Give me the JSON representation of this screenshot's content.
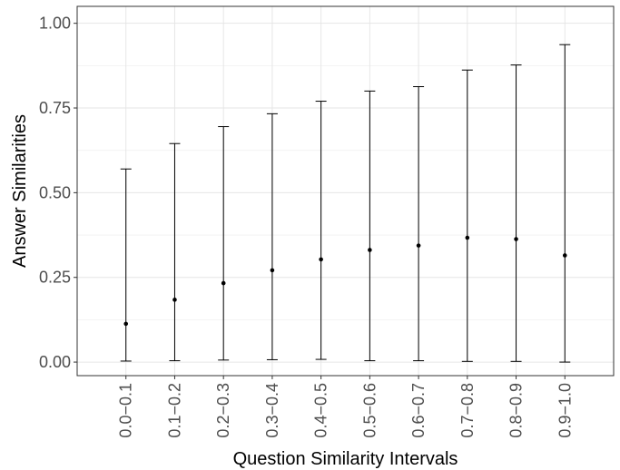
{
  "chart_data": {
    "type": "errorbar",
    "xlabel": "Question Similarity Intervals",
    "ylabel": "Answer Similarities",
    "ylim": [
      -0.04,
      1.05
    ],
    "yticks": [
      "0.00",
      "0.25",
      "0.50",
      "0.75",
      "1.00"
    ],
    "ytick_values": [
      0,
      0.25,
      0.5,
      0.75,
      1.0
    ],
    "categories": [
      "0.0−0.1",
      "0.1−0.2",
      "0.2−0.3",
      "0.3−0.4",
      "0.4−0.5",
      "0.5−0.6",
      "0.6−0.7",
      "0.7−0.8",
      "0.8−0.9",
      "0.9−1.0"
    ],
    "mean": [
      0.113,
      0.184,
      0.233,
      0.271,
      0.303,
      0.331,
      0.344,
      0.367,
      0.363,
      0.315
    ],
    "lower": [
      0.003,
      0.004,
      0.006,
      0.007,
      0.008,
      0.004,
      0.004,
      0.002,
      0.002,
      0.0
    ],
    "upper": [
      0.57,
      0.645,
      0.695,
      0.733,
      0.77,
      0.8,
      0.813,
      0.862,
      0.877,
      0.937
    ],
    "grid": true,
    "legend": "none"
  }
}
